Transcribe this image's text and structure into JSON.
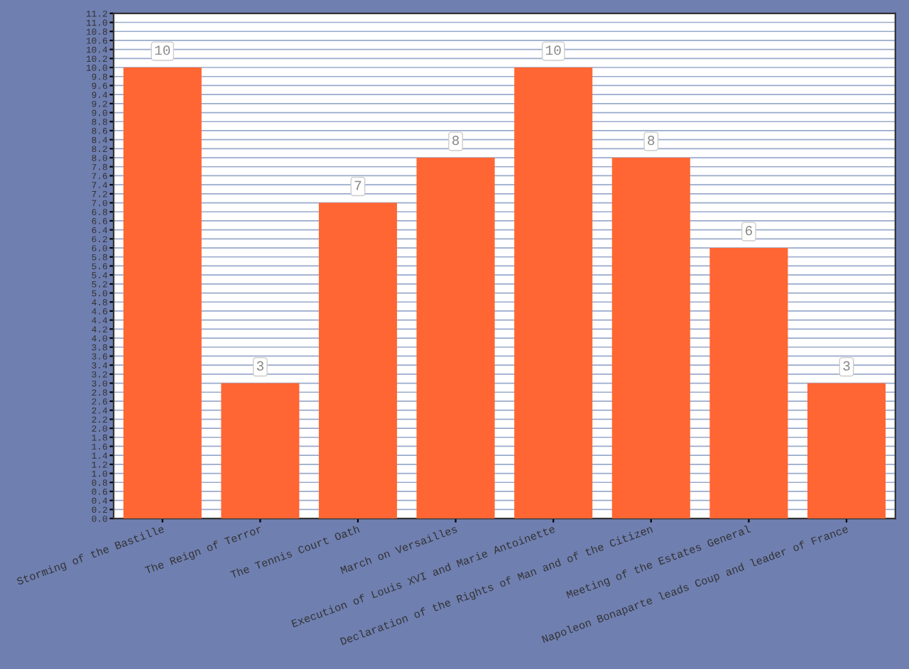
{
  "chart_data": {
    "type": "bar",
    "categories": [
      "Storming of the Bastille",
      "The Reign of Terror",
      "The Tennis Court Oath",
      "March on Versailles",
      "Execution of Louis XVI and Marie Antoinette",
      "Declaration of the Rights of Man and of the Citizen",
      "Meeting of the Estates General",
      "Napoleon Bonaparte leads Coup and leader of France"
    ],
    "values": [
      10,
      3,
      7,
      8,
      10,
      8,
      6,
      3
    ],
    "color": "#ff6633",
    "ylim": [
      0,
      11.2
    ],
    "yticks": [
      {
        "value": 0,
        "label": "0.0"
      },
      {
        "value": 0.2,
        "label": "0.2"
      },
      {
        "value": 0.4,
        "label": "0.4"
      },
      {
        "value": 0.6,
        "label": "0.6"
      },
      {
        "value": 0.8,
        "label": "0.8"
      },
      {
        "value": 1,
        "label": "1.0"
      },
      {
        "value": 1.2,
        "label": "1.2"
      },
      {
        "value": 1.4,
        "label": "1.4"
      },
      {
        "value": 1.6,
        "label": "1.6"
      },
      {
        "value": 1.8,
        "label": "1.8"
      },
      {
        "value": 2,
        "label": "2.0"
      },
      {
        "value": 2.2,
        "label": "2.2"
      },
      {
        "value": 2.4,
        "label": "2.4"
      },
      {
        "value": 2.6,
        "label": "2.6"
      },
      {
        "value": 2.8,
        "label": "2.8"
      },
      {
        "value": 3,
        "label": "3.0"
      },
      {
        "value": 3.2,
        "label": "3.2"
      },
      {
        "value": 3.4,
        "label": "3.4"
      },
      {
        "value": 3.6,
        "label": "3.6"
      },
      {
        "value": 3.8,
        "label": "3.8"
      },
      {
        "value": 4,
        "label": "4.0"
      },
      {
        "value": 4.2,
        "label": "4.2"
      },
      {
        "value": 4.4,
        "label": "4.4"
      },
      {
        "value": 4.6,
        "label": "4.6"
      },
      {
        "value": 4.8,
        "label": "4.8"
      },
      {
        "value": 5,
        "label": "5.0"
      },
      {
        "value": 5.2,
        "label": "5.2"
      },
      {
        "value": 5.4,
        "label": "5.4"
      },
      {
        "value": 5.6,
        "label": "5.6"
      },
      {
        "value": 5.8,
        "label": "5.8"
      },
      {
        "value": 6,
        "label": "6.0"
      },
      {
        "value": 6.2,
        "label": "6.2"
      },
      {
        "value": 6.4,
        "label": "6.4"
      },
      {
        "value": 6.6,
        "label": "6.6"
      },
      {
        "value": 6.8,
        "label": "6.8"
      },
      {
        "value": 7,
        "label": "7.0"
      },
      {
        "value": 7.2,
        "label": "7.2"
      },
      {
        "value": 7.4,
        "label": "7.4"
      },
      {
        "value": 7.6,
        "label": "7.6"
      },
      {
        "value": 7.8,
        "label": "7.8"
      },
      {
        "value": 8,
        "label": "8.0"
      },
      {
        "value": 8.2,
        "label": "8.2"
      },
      {
        "value": 8.4,
        "label": "8.4"
      },
      {
        "value": 8.6,
        "label": "8.6"
      },
      {
        "value": 8.8,
        "label": "8.8"
      },
      {
        "value": 9,
        "label": "9.0"
      },
      {
        "value": 9.2,
        "label": "9.2"
      },
      {
        "value": 9.4,
        "label": "9.4"
      },
      {
        "value": 9.6,
        "label": "9.6"
      },
      {
        "value": 9.8,
        "label": "9.8"
      },
      {
        "value": 10,
        "label": "10.0"
      },
      {
        "value": 10.2,
        "label": "10.2"
      },
      {
        "value": 10.4,
        "label": "10.4"
      },
      {
        "value": 10.6,
        "label": "10.6"
      },
      {
        "value": 10.8,
        "label": "10.8"
      },
      {
        "value": 11,
        "label": "11.0"
      },
      {
        "value": 11.2,
        "label": "11.2"
      }
    ],
    "grid": "y",
    "data_labels": true
  }
}
